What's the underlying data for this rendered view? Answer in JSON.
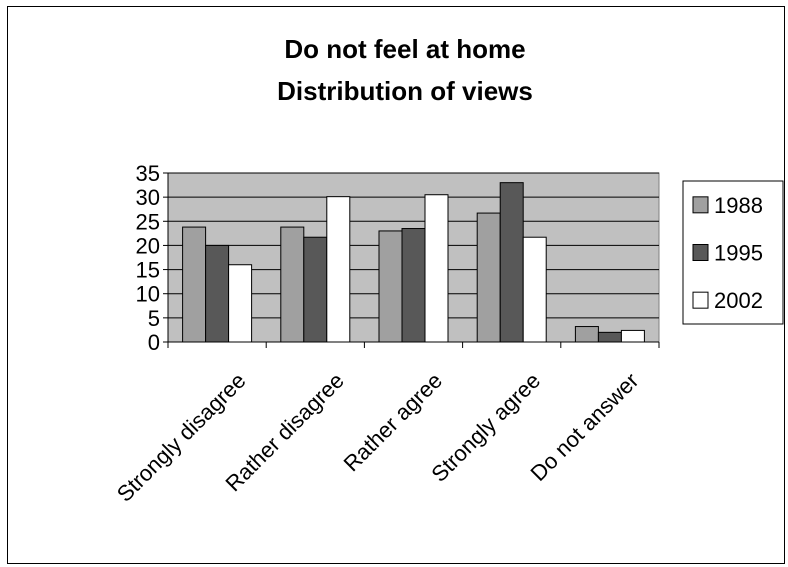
{
  "chart_data": {
    "type": "bar",
    "title": [
      "Do not feel at home",
      "Distribution of views"
    ],
    "categories": [
      "Strongly disagree",
      "Rather disagree",
      "Rather agree",
      "Strongly agree",
      "Do not answer"
    ],
    "series": [
      {
        "name": "1988",
        "color": "#a0a0a0",
        "values": [
          23.8,
          23.8,
          23.0,
          26.7,
          3.2
        ]
      },
      {
        "name": "1995",
        "color": "#585858",
        "values": [
          20.0,
          21.7,
          23.5,
          33.0,
          2.0
        ]
      },
      {
        "name": "2002",
        "color": "#ffffff",
        "values": [
          16.0,
          30.1,
          30.5,
          21.7,
          2.4
        ]
      }
    ],
    "yticks": [
      0,
      5,
      10,
      15,
      20,
      25,
      30,
      35
    ],
    "ylim": [
      0,
      35
    ],
    "xlabel": "",
    "ylabel": "",
    "grid": true,
    "plot_background": "#c0c0c0",
    "legend_position": "right"
  }
}
